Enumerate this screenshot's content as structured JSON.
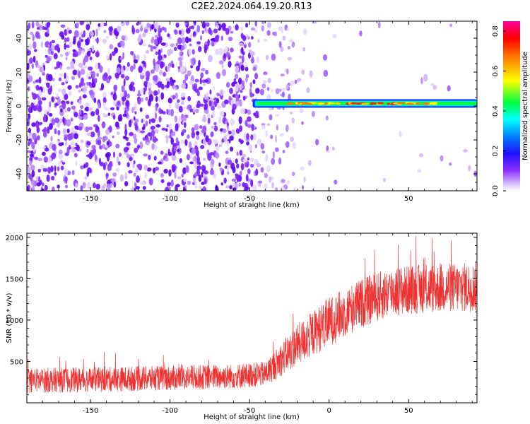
{
  "figure": {
    "title": "C2E2.2024.064.19.20.R13"
  },
  "chart_data": [
    {
      "type": "heatmap",
      "xlabel": "Height of straight line (km)",
      "ylabel": "Frequency (Hz)",
      "xlim": [
        -190,
        93
      ],
      "ylim": [
        -50,
        50
      ],
      "xticks": [
        -150,
        -100,
        -50,
        0,
        50
      ],
      "yticks": [
        -40,
        -20,
        0,
        20,
        40
      ],
      "noise_region": {
        "x_range": [
          -190,
          -40
        ],
        "description_note": ""
      },
      "signal_band": {
        "x_start": -48,
        "x_end": 93,
        "frequency": 1.5,
        "half_width": 2.5
      },
      "colorbar": {
        "label": "Normalized spectral amplitude",
        "range": [
          0.0,
          0.85
        ],
        "ticks": [
          0.0,
          0.2,
          0.4,
          0.6,
          0.8
        ],
        "tick_labels": [
          "0.0",
          "0.2",
          "0.4",
          "0.6",
          "0.8"
        ],
        "colors": [
          "#ffffff",
          "#e0c8ff",
          "#9a40ff",
          "#6a00ff",
          "#0000ff",
          "#00ffff",
          "#00ff40",
          "#ffff00",
          "#ff7a00",
          "#ff0000",
          "#ff00a0"
        ]
      },
      "grid": false
    },
    {
      "type": "line",
      "xlabel": "Height of straight line (km)",
      "ylabel": "SNR (10 * v/v)",
      "xlim": [
        -190,
        93
      ],
      "ylim": [
        0,
        2050
      ],
      "xticks": [
        -150,
        -100,
        -50,
        0,
        50
      ],
      "yticks": [
        500,
        1000,
        1500,
        2000
      ],
      "color": "#ee3333",
      "trend": {
        "x": [
          -190,
          -150,
          -100,
          -60,
          -40,
          -20,
          0,
          20,
          40,
          60,
          93
        ],
        "y": [
          270,
          280,
          300,
          320,
          350,
          700,
          980,
          1200,
          1350,
          1380,
          1400
        ]
      },
      "spread": {
        "x": [
          -190,
          -40,
          -20,
          0,
          20,
          93
        ],
        "y": [
          150,
          150,
          250,
          300,
          300,
          300
        ]
      },
      "grid": false
    }
  ]
}
